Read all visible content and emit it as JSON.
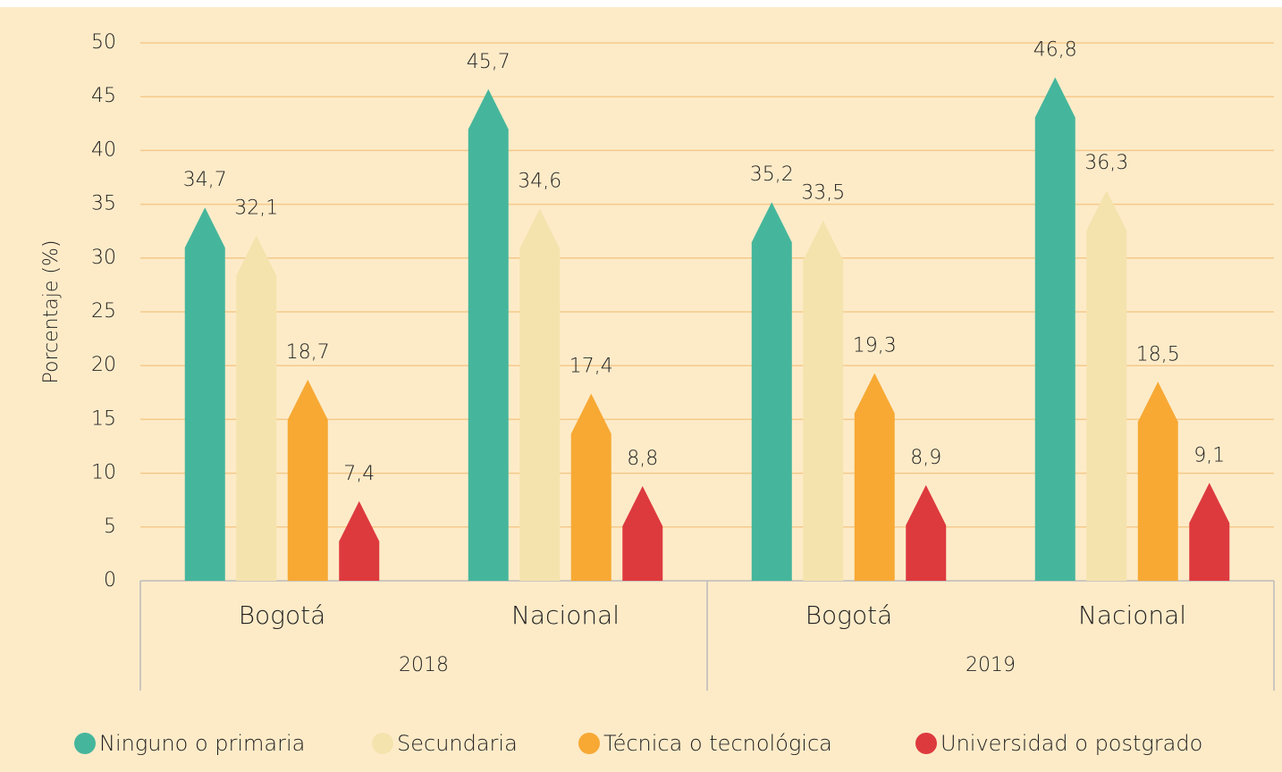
{
  "chart_data": {
    "type": "bar",
    "y_label": "Porcentaje (%)",
    "categories": [
      "Bogotá",
      "Nacional",
      "Bogotá",
      "Nacional"
    ],
    "category_groups": [
      "2018",
      "2019"
    ],
    "ylim": [
      0,
      50
    ],
    "yticks": [
      0,
      5,
      10,
      15,
      20,
      25,
      30,
      35,
      40,
      45,
      50
    ],
    "grid": true,
    "legend": "bottom",
    "series": [
      {
        "name": "Ninguno o primaria",
        "color": "#45b69c",
        "values": [
          34.7,
          45.7,
          35.2,
          46.8
        ],
        "value_labels": [
          "34,7",
          "45,7",
          "35,2",
          "46,8"
        ]
      },
      {
        "name": "Secundaria",
        "color": "#f5e3ae",
        "values": [
          32.1,
          34.6,
          33.5,
          36.3
        ],
        "value_labels": [
          "32,1",
          "34,6",
          "33,5",
          "36,3"
        ]
      },
      {
        "name": "Técnica o tecnológica",
        "color": "#f7a934",
        "values": [
          18.7,
          17.4,
          19.3,
          18.5
        ],
        "value_labels": [
          "18,7",
          "17,4",
          "19,3",
          "18,5"
        ]
      },
      {
        "name": "Universidad o postgrado",
        "color": "#dd3a3e",
        "values": [
          7.4,
          8.8,
          8.9,
          9.1
        ],
        "value_labels": [
          "7,4",
          "8,8",
          "8,9",
          "9,1"
        ]
      }
    ]
  }
}
